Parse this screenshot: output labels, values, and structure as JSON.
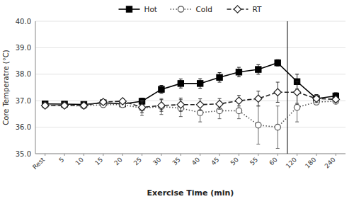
{
  "chart_data": {
    "type": "line",
    "categories": [
      "Rest",
      "5",
      "10",
      "15",
      "20",
      "25",
      "30",
      "35",
      "40",
      "45",
      "50",
      "55",
      "60",
      "120",
      "180",
      "240"
    ],
    "series": [
      {
        "name": "Hot",
        "color": "#000000",
        "marker": "square",
        "line_style": "solid",
        "values": [
          36.88,
          36.87,
          36.86,
          36.92,
          36.88,
          36.98,
          37.43,
          37.65,
          37.65,
          37.88,
          38.08,
          38.18,
          38.43,
          37.72,
          37.08,
          37.18
        ],
        "errors": [
          0.07,
          0.06,
          0.06,
          0.07,
          0.07,
          0.12,
          0.15,
          0.17,
          0.18,
          0.18,
          0.18,
          0.18,
          0.12,
          0.28,
          0.15,
          0.12
        ]
      },
      {
        "name": "Cold",
        "color": "#555555",
        "marker": "circle",
        "line_style": "dotted",
        "values": [
          36.82,
          36.82,
          36.8,
          36.85,
          36.85,
          36.72,
          36.78,
          36.72,
          36.55,
          36.62,
          36.62,
          36.08,
          36.0,
          36.75,
          36.95,
          36.98
        ],
        "errors": [
          0.07,
          0.06,
          0.07,
          0.08,
          0.08,
          0.28,
          0.3,
          0.32,
          0.35,
          0.3,
          0.3,
          0.72,
          0.8,
          0.55,
          0.1,
          0.1
        ]
      },
      {
        "name": "RT",
        "color": "#222222",
        "marker": "diamond",
        "line_style": "dashed",
        "values": [
          36.82,
          36.82,
          36.82,
          36.95,
          36.98,
          36.75,
          36.82,
          36.85,
          36.85,
          36.88,
          37.0,
          37.08,
          37.32,
          37.32,
          37.08,
          37.05
        ],
        "errors": [
          0.07,
          0.06,
          0.07,
          0.08,
          0.08,
          0.2,
          0.22,
          0.25,
          0.22,
          0.2,
          0.2,
          0.28,
          0.38,
          0.42,
          0.15,
          0.1
        ]
      }
    ],
    "x_label": "Exercise Time (min)",
    "y_label": "Core Temperatre (°C)",
    "ylim": [
      35.0,
      40.0
    ],
    "yticks": [
      {
        "value": 35.0,
        "label": "35.0"
      },
      {
        "value": 36.0,
        "label": "36.0"
      },
      {
        "value": 37.0,
        "label": "37.0"
      },
      {
        "value": 38.0,
        "label": "38.0"
      },
      {
        "value": 39.0,
        "label": "39.0"
      },
      {
        "value": 40.0,
        "label": "40.0"
      }
    ],
    "grid": true,
    "legend": "top"
  }
}
